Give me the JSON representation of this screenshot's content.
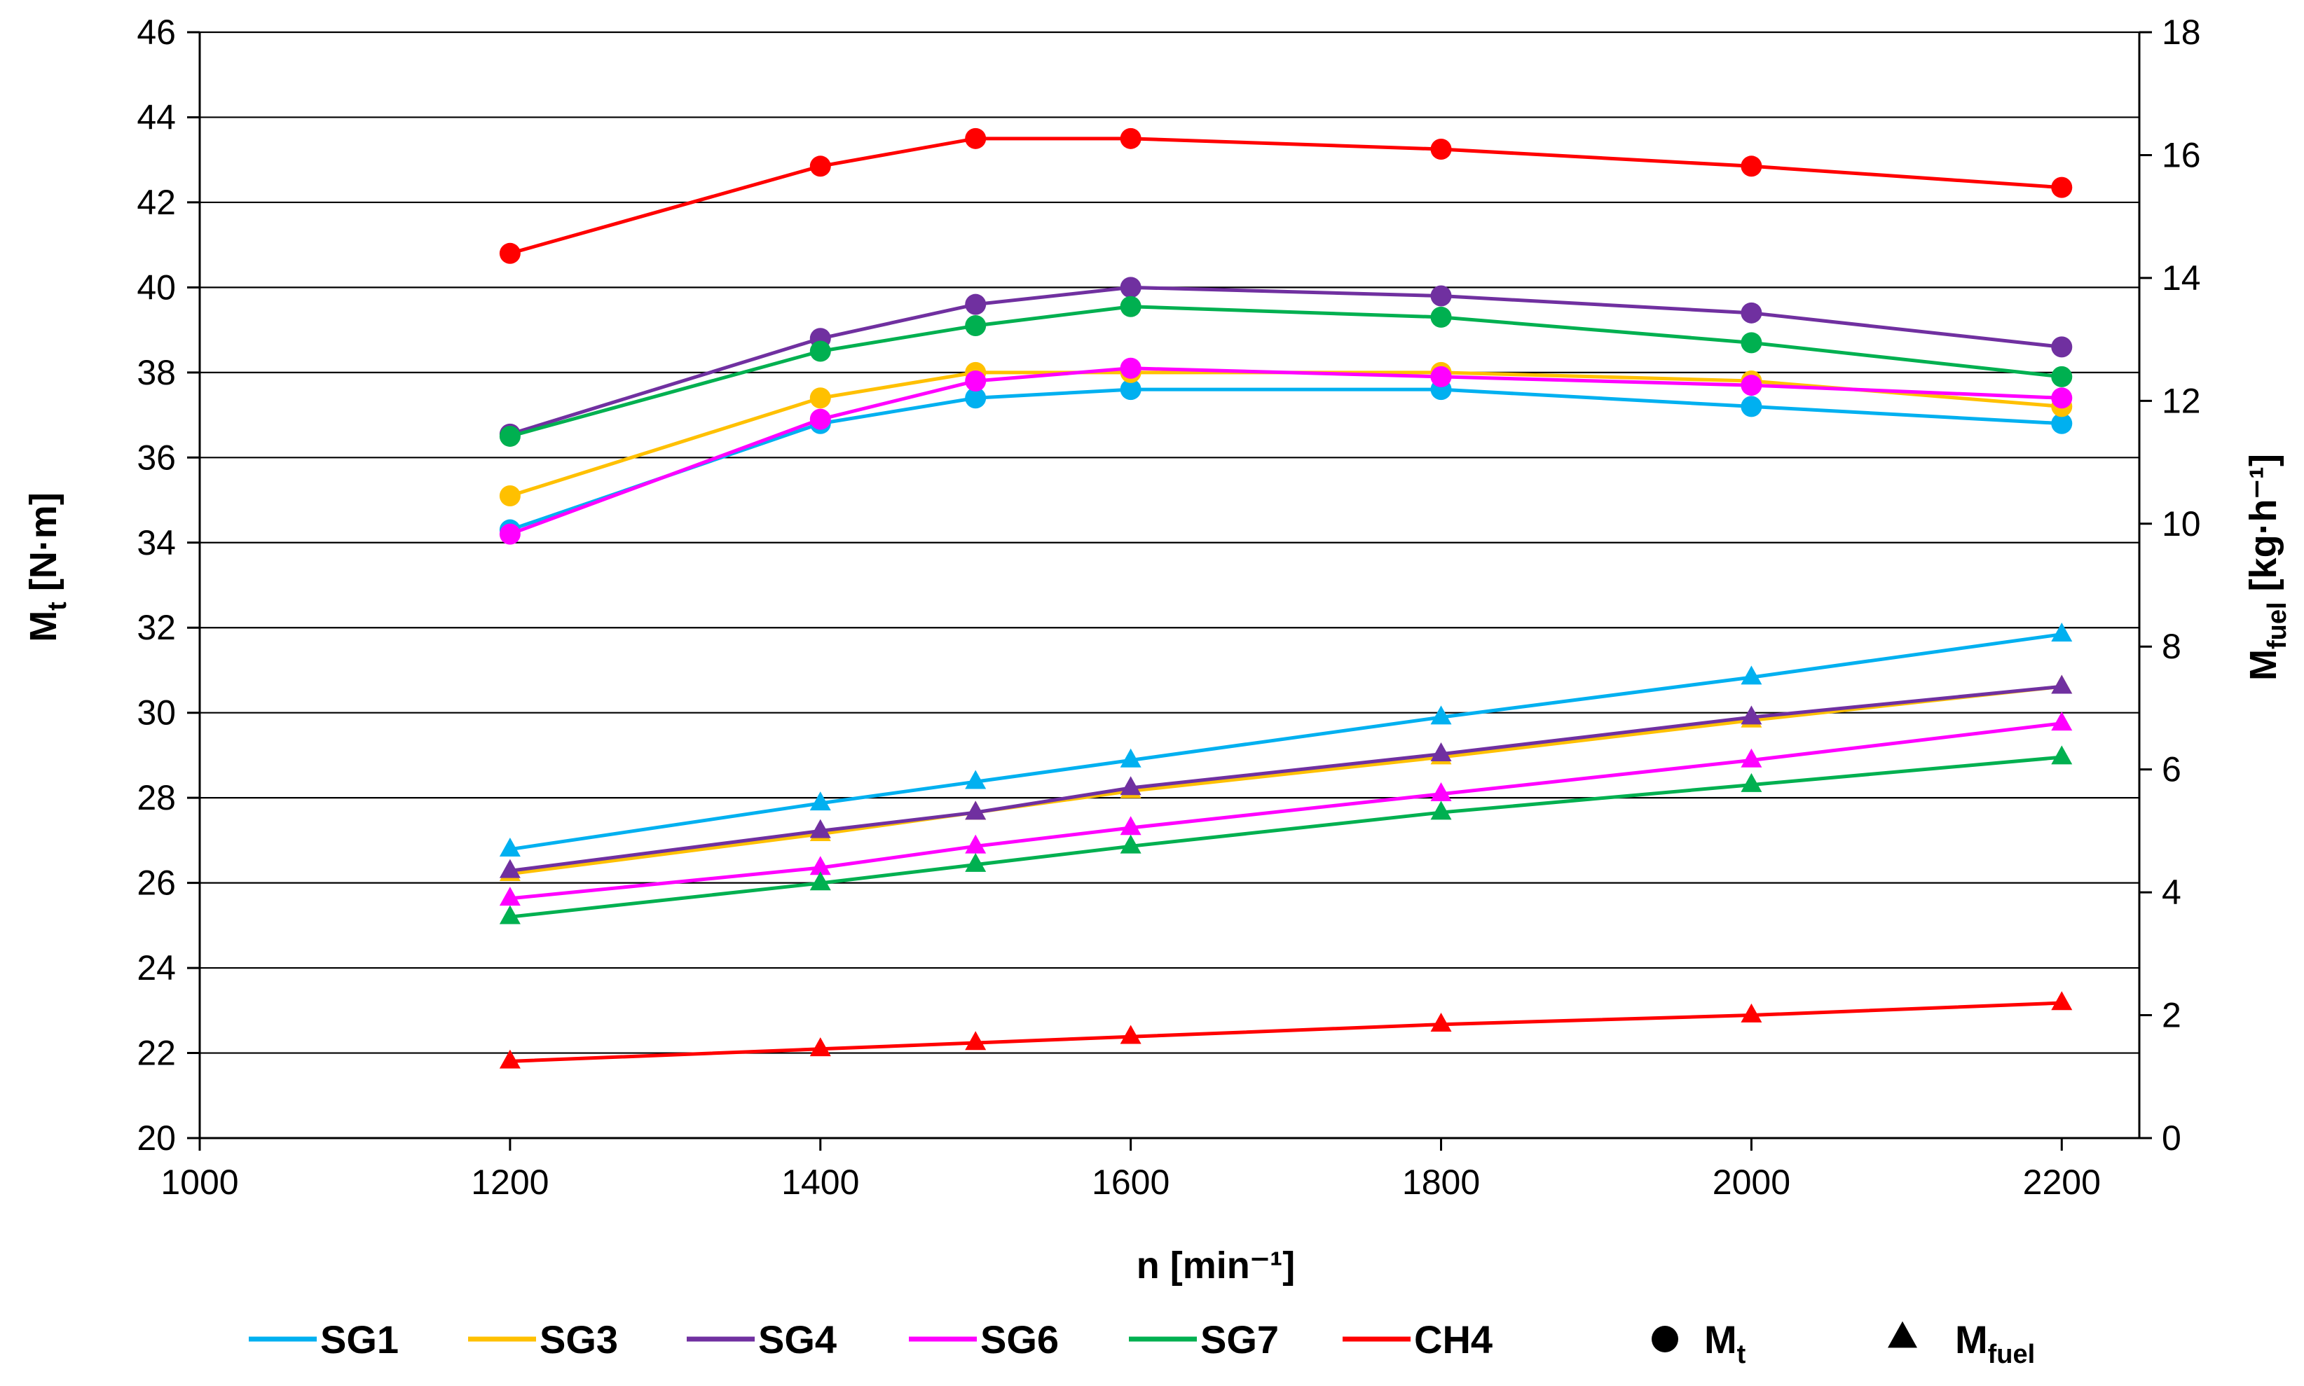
{
  "chart_data": {
    "type": "line",
    "title": "",
    "xlabel": "n [min⁻¹]",
    "ylabel_left": {
      "main": "M",
      "sub": "t",
      "unit": " [N·m]"
    },
    "ylabel_right": {
      "main": "M",
      "sub": "fuel",
      "unit": " [kg·h⁻¹]"
    },
    "xlim": [
      1000,
      2250
    ],
    "ylim_left": [
      20,
      46
    ],
    "ylim_right": [
      0,
      18
    ],
    "xticks": [
      1000,
      1200,
      1400,
      1600,
      1800,
      2000,
      2200
    ],
    "yticks_left": [
      20,
      22,
      24,
      26,
      28,
      30,
      32,
      34,
      36,
      38,
      40,
      42,
      44,
      46
    ],
    "yticks_right": [
      0,
      2,
      4,
      6,
      8,
      10,
      12,
      14,
      16,
      18
    ],
    "grid": "horizontal",
    "x": [
      1200,
      1400,
      1500,
      1600,
      1800,
      2000,
      2200
    ],
    "series": [
      {
        "name": "SG1",
        "color": "#00b0f0",
        "mt": [
          34.3,
          36.8,
          37.4,
          37.6,
          37.6,
          37.2,
          36.8
        ],
        "mfuel": [
          4.7,
          5.45,
          5.8,
          6.15,
          6.85,
          7.5,
          8.2
        ]
      },
      {
        "name": "SG3",
        "color": "#ffc000",
        "mt": [
          35.1,
          37.4,
          38.0,
          38.0,
          38.0,
          37.8,
          37.2
        ],
        "mfuel": [
          4.3,
          4.95,
          5.3,
          5.65,
          6.2,
          6.8,
          7.35
        ]
      },
      {
        "name": "SG4",
        "color": "#7030a0",
        "mt": [
          36.55,
          38.8,
          39.6,
          40.0,
          39.8,
          39.4,
          38.6
        ],
        "mfuel": [
          4.35,
          5.0,
          5.3,
          5.7,
          6.25,
          6.85,
          7.35
        ]
      },
      {
        "name": "SG6",
        "color": "#ff00ff",
        "mt": [
          34.2,
          36.9,
          37.8,
          38.1,
          37.9,
          37.7,
          37.4
        ],
        "mfuel": [
          3.9,
          4.4,
          4.75,
          5.05,
          5.6,
          6.15,
          6.75
        ]
      },
      {
        "name": "SG7",
        "color": "#00b050",
        "mt": [
          36.5,
          38.5,
          39.1,
          39.55,
          39.3,
          38.7,
          37.9
        ],
        "mfuel": [
          3.6,
          4.15,
          4.45,
          4.75,
          5.3,
          5.75,
          6.2
        ]
      },
      {
        "name": "CH4",
        "color": "#ff0000",
        "mt": [
          40.8,
          42.85,
          43.5,
          43.5,
          43.25,
          42.85,
          42.35
        ],
        "mfuel": [
          1.25,
          1.45,
          1.55,
          1.65,
          1.85,
          2.0,
          2.2
        ]
      }
    ],
    "legend": {
      "position": "bottom",
      "marker_mt": {
        "main": "M",
        "sub": "t"
      },
      "marker_mfuel": {
        "main": "M",
        "sub": "fuel"
      }
    }
  }
}
